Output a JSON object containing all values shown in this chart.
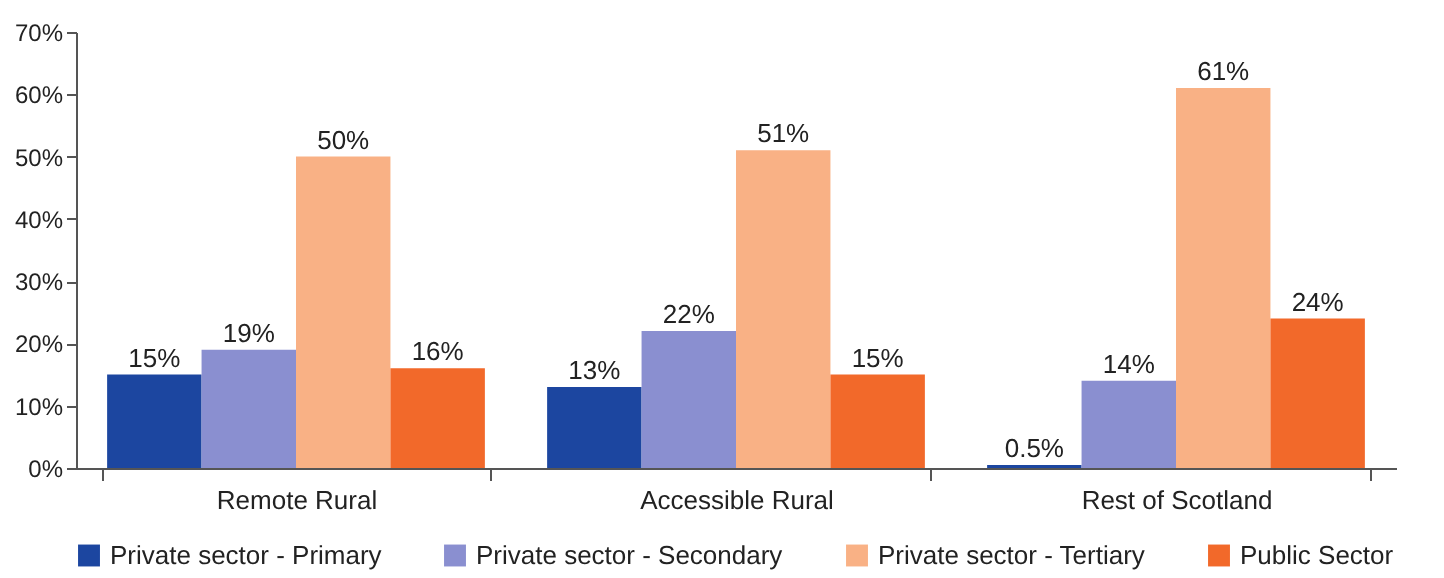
{
  "chart_data": {
    "type": "bar",
    "categories": [
      "Remote Rural",
      "Accessible Rural",
      "Rest of Scotland"
    ],
    "series": [
      {
        "name": "Private sector - Primary",
        "color": "#1c46a0",
        "values": [
          15,
          13,
          0.5
        ],
        "value_labels": [
          "15%",
          "13%",
          "0.5%"
        ]
      },
      {
        "name": "Private sector - Secondary",
        "color": "#8a8fd0",
        "values": [
          19,
          22,
          14
        ],
        "value_labels": [
          "19%",
          "22%",
          "14%"
        ]
      },
      {
        "name": "Private sector - Tertiary",
        "color": "#f9b185",
        "values": [
          50,
          51,
          61
        ],
        "value_labels": [
          "50%",
          "51%",
          "61%"
        ]
      },
      {
        "name": "Public Sector",
        "color": "#f2692a",
        "values": [
          16,
          15,
          24
        ],
        "value_labels": [
          "16%",
          "15%",
          "24%"
        ]
      }
    ],
    "ylim": [
      0,
      70
    ],
    "yticks": [
      {
        "value": 0,
        "label": "0%"
      },
      {
        "value": 10,
        "label": "10%"
      },
      {
        "value": 20,
        "label": "20%"
      },
      {
        "value": 30,
        "label": "30%"
      },
      {
        "value": 40,
        "label": "40%"
      },
      {
        "value": 50,
        "label": "50%"
      },
      {
        "value": 60,
        "label": "60%"
      },
      {
        "value": 70,
        "label": "70%"
      }
    ],
    "grid": false,
    "legend": "bottom"
  }
}
